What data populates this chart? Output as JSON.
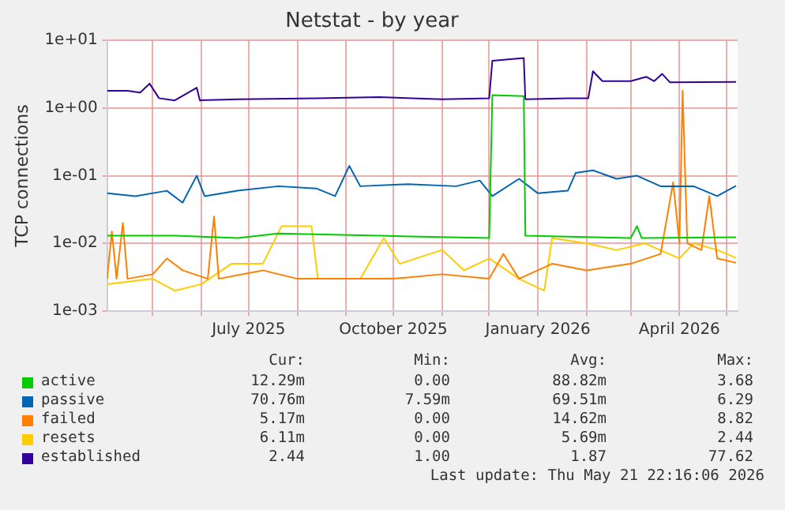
{
  "chart_data": {
    "type": "line",
    "title": "Netstat - by year",
    "ylabel": "TCP connections",
    "log": "y",
    "grid": true,
    "legend": "bottom",
    "marker": "none",
    "line_style": "solid",
    "xlim": [
      "2025-04-02",
      "2026-05-08"
    ],
    "xticks": [
      {
        "value": "2025-05-01",
        "label": null
      },
      {
        "value": "2025-06-01",
        "label": null
      },
      {
        "value": "2025-07-01",
        "label": "July 2025"
      },
      {
        "value": "2025-08-01",
        "label": null
      },
      {
        "value": "2025-09-01",
        "label": null
      },
      {
        "value": "2025-10-01",
        "label": "October 2025"
      },
      {
        "value": "2025-11-01",
        "label": null
      },
      {
        "value": "2025-12-01",
        "label": null
      },
      {
        "value": "2026-01-01",
        "label": "January 2026"
      },
      {
        "value": "2026-02-01",
        "label": null
      },
      {
        "value": "2026-03-01",
        "label": null
      },
      {
        "value": "2026-04-01",
        "label": "April 2026"
      },
      {
        "value": "2026-05-01",
        "label": null
      }
    ],
    "ylim": [
      0.001,
      10
    ],
    "yticks": [
      {
        "value": 0.001,
        "label": "1e-03"
      },
      {
        "value": 0.01,
        "label": "1e-02"
      },
      {
        "value": 0.1,
        "label": "1e-01"
      },
      {
        "value": 1,
        "label": "1e+00"
      },
      {
        "value": 10,
        "label": "1e+01"
      }
    ],
    "series": [
      {
        "name": "active",
        "color": "#00cc00",
        "x": [
          "2025-04-02",
          "2025-05-15",
          "2025-06-24",
          "2025-07-20",
          "2025-09-22",
          "2025-12-01",
          "2025-12-03",
          "2025-12-23",
          "2025-12-24",
          "2026-03-01",
          "2026-03-05",
          "2026-03-08",
          "2026-05-07"
        ],
        "values": [
          0.013,
          0.013,
          0.012,
          0.014,
          0.013,
          0.012,
          1.55,
          1.5,
          0.013,
          0.012,
          0.018,
          0.012,
          0.0123
        ]
      },
      {
        "name": "passive",
        "color": "#0066b3",
        "x": [
          "2025-04-02",
          "2025-04-20",
          "2025-05-10",
          "2025-05-20",
          "2025-05-29",
          "2025-06-03",
          "2025-06-24",
          "2025-07-20",
          "2025-08-13",
          "2025-08-25",
          "2025-09-03",
          "2025-09-10",
          "2025-10-10",
          "2025-11-10",
          "2025-11-25",
          "2025-12-03",
          "2025-12-20",
          "2026-01-01",
          "2026-01-20",
          "2026-01-25",
          "2026-02-05",
          "2026-02-20",
          "2026-03-05",
          "2026-03-20",
          "2026-04-10",
          "2026-04-25",
          "2026-05-07"
        ],
        "values": [
          0.055,
          0.05,
          0.06,
          0.04,
          0.1,
          0.05,
          0.06,
          0.07,
          0.065,
          0.05,
          0.14,
          0.07,
          0.075,
          0.07,
          0.085,
          0.05,
          0.09,
          0.055,
          0.06,
          0.11,
          0.12,
          0.09,
          0.1,
          0.07,
          0.07,
          0.05,
          0.0708
        ]
      },
      {
        "name": "failed",
        "color": "#ff8000",
        "x": [
          "2025-04-02",
          "2025-04-05",
          "2025-04-08",
          "2025-04-12",
          "2025-04-15",
          "2025-05-01",
          "2025-05-10",
          "2025-05-20",
          "2025-06-05",
          "2025-06-09",
          "2025-06-12",
          "2025-07-10",
          "2025-08-01",
          "2025-09-01",
          "2025-10-01",
          "2025-11-01",
          "2025-12-01",
          "2025-12-10",
          "2025-12-20",
          "2026-01-10",
          "2026-02-01",
          "2026-03-01",
          "2026-03-20",
          "2026-03-28",
          "2026-04-01",
          "2026-04-03",
          "2026-04-06",
          "2026-04-15",
          "2026-04-20",
          "2026-04-25",
          "2026-05-07"
        ],
        "values": [
          0.003,
          0.015,
          0.003,
          0.02,
          0.003,
          0.0035,
          0.006,
          0.004,
          0.003,
          0.025,
          0.003,
          0.004,
          0.003,
          0.003,
          0.003,
          0.0035,
          0.003,
          0.007,
          0.003,
          0.005,
          0.004,
          0.005,
          0.007,
          0.08,
          0.01,
          1.8,
          0.01,
          0.008,
          0.05,
          0.006,
          0.00517
        ]
      },
      {
        "name": "resets",
        "color": "#ffcc00",
        "x": [
          "2025-04-02",
          "2025-05-01",
          "2025-05-15",
          "2025-06-01",
          "2025-06-20",
          "2025-07-10",
          "2025-07-22",
          "2025-08-10",
          "2025-08-14",
          "2025-09-10",
          "2025-09-25",
          "2025-10-05",
          "2025-11-01",
          "2025-11-15",
          "2025-12-01",
          "2025-12-20",
          "2026-01-05",
          "2026-01-10",
          "2026-02-01",
          "2026-02-20",
          "2026-03-10",
          "2026-04-01",
          "2026-04-10",
          "2026-04-25",
          "2026-05-07"
        ],
        "values": [
          0.0025,
          0.003,
          0.002,
          0.0025,
          0.005,
          0.005,
          0.018,
          0.018,
          0.003,
          0.003,
          0.012,
          0.005,
          0.008,
          0.004,
          0.006,
          0.003,
          0.002,
          0.012,
          0.01,
          0.008,
          0.01,
          0.006,
          0.01,
          0.008,
          0.00611
        ]
      },
      {
        "name": "established",
        "color": "#330099",
        "x": [
          "2025-04-02",
          "2025-04-15",
          "2025-04-23",
          "2025-04-29",
          "2025-05-05",
          "2025-05-15",
          "2025-05-29",
          "2025-05-31",
          "2025-06-24",
          "2025-08-13",
          "2025-09-22",
          "2025-11-01",
          "2025-12-01",
          "2025-12-03",
          "2025-12-23",
          "2025-12-24",
          "2026-01-20",
          "2026-02-02",
          "2026-02-05",
          "2026-02-11",
          "2026-03-01",
          "2026-03-11",
          "2026-03-16",
          "2026-03-21",
          "2026-03-26",
          "2026-05-07"
        ],
        "values": [
          1.8,
          1.8,
          1.7,
          2.3,
          1.4,
          1.3,
          2.0,
          1.3,
          1.35,
          1.4,
          1.45,
          1.35,
          1.4,
          5.0,
          5.5,
          1.35,
          1.4,
          1.4,
          3.5,
          2.5,
          2.5,
          2.9,
          2.5,
          3.2,
          2.4,
          2.44
        ]
      }
    ],
    "annotations": [
      "Cur:",
      "Min:",
      "Avg:",
      "Max:",
      "12.29m",
      "0.00",
      "88.82m",
      "3.68",
      "70.76m",
      "7.59m",
      "69.51m",
      "6.29",
      "5.17m",
      "0.00",
      "14.62m",
      "8.82",
      "6.11m",
      "0.00",
      "5.69m",
      "2.44",
      "2.44",
      "1.00",
      "1.87",
      "77.62",
      "Last update: Thu May 21 22:16:06 2026"
    ]
  }
}
